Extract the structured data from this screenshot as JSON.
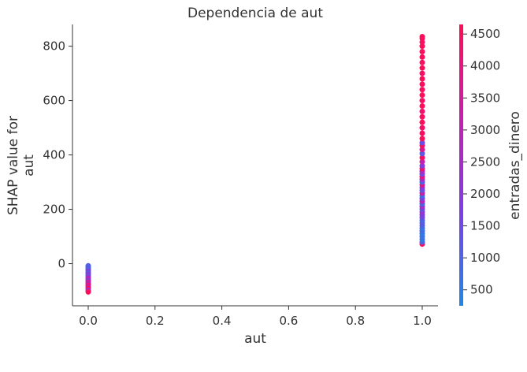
{
  "chart_data": {
    "type": "scatter",
    "title": "Dependencia de aut",
    "xlabel": "aut",
    "ylabel_line1": "SHAP value for",
    "ylabel_line2": "aut",
    "xlim": [
      -0.05,
      1.05
    ],
    "ylim": [
      -155,
      880
    ],
    "x_ticks": [
      0.0,
      0.2,
      0.4,
      0.6,
      0.8,
      1.0
    ],
    "x_tick_labels": [
      "0.0",
      "0.2",
      "0.4",
      "0.6",
      "0.8",
      "1.0"
    ],
    "y_ticks": [
      0,
      200,
      400,
      600,
      800
    ],
    "y_tick_labels": [
      "0",
      "200",
      "400",
      "600",
      "800"
    ],
    "grid": false,
    "colorbar": {
      "label": "entradas_dinero",
      "range": [
        250,
        4650
      ],
      "ticks": [
        500,
        1000,
        1500,
        2000,
        2500,
        3000,
        3500,
        4000,
        4500
      ],
      "tick_labels": [
        "500",
        "1000",
        "1500",
        "2000",
        "2500",
        "3000",
        "3500",
        "4000",
        "4500"
      ],
      "colormap": [
        "#1e88e5",
        "#7c3ee6",
        "#c41fb0",
        "#ff0d57"
      ]
    },
    "series": [
      {
        "points": [
          {
            "x": 0.0,
            "y": -8,
            "c": 1200
          },
          {
            "x": 0.0,
            "y": -12,
            "c": 800
          },
          {
            "x": 0.0,
            "y": -18,
            "c": 1500
          },
          {
            "x": 0.0,
            "y": -22,
            "c": 900
          },
          {
            "x": 0.0,
            "y": -28,
            "c": 1800
          },
          {
            "x": 0.0,
            "y": -35,
            "c": 1100
          },
          {
            "x": 0.0,
            "y": -40,
            "c": 2200
          },
          {
            "x": 0.0,
            "y": -46,
            "c": 1300
          },
          {
            "x": 0.0,
            "y": -52,
            "c": 2600
          },
          {
            "x": 0.0,
            "y": -58,
            "c": 3100
          },
          {
            "x": 0.0,
            "y": -63,
            "c": 1700
          },
          {
            "x": 0.0,
            "y": -68,
            "c": 3600
          },
          {
            "x": 0.0,
            "y": -74,
            "c": 2900
          },
          {
            "x": 0.0,
            "y": -80,
            "c": 4100
          },
          {
            "x": 0.0,
            "y": -86,
            "c": 3400
          },
          {
            "x": 0.0,
            "y": -92,
            "c": 4400
          },
          {
            "x": 0.0,
            "y": -98,
            "c": 2400
          },
          {
            "x": 0.0,
            "y": -104,
            "c": 4600
          },
          {
            "x": 1.0,
            "y": 72,
            "c": 4400
          },
          {
            "x": 1.0,
            "y": 80,
            "c": 900
          },
          {
            "x": 1.0,
            "y": 90,
            "c": 600
          },
          {
            "x": 1.0,
            "y": 100,
            "c": 700
          },
          {
            "x": 1.0,
            "y": 110,
            "c": 500
          },
          {
            "x": 1.0,
            "y": 120,
            "c": 800
          },
          {
            "x": 1.0,
            "y": 130,
            "c": 650
          },
          {
            "x": 1.0,
            "y": 140,
            "c": 1000
          },
          {
            "x": 1.0,
            "y": 150,
            "c": 1200
          },
          {
            "x": 1.0,
            "y": 160,
            "c": 900
          },
          {
            "x": 1.0,
            "y": 170,
            "c": 1500
          },
          {
            "x": 1.0,
            "y": 180,
            "c": 1800
          },
          {
            "x": 1.0,
            "y": 190,
            "c": 2200
          },
          {
            "x": 1.0,
            "y": 200,
            "c": 1400
          },
          {
            "x": 1.0,
            "y": 210,
            "c": 2600
          },
          {
            "x": 1.0,
            "y": 220,
            "c": 1000
          },
          {
            "x": 1.0,
            "y": 230,
            "c": 3000
          },
          {
            "x": 1.0,
            "y": 240,
            "c": 1700
          },
          {
            "x": 1.0,
            "y": 250,
            "c": 800
          },
          {
            "x": 1.0,
            "y": 260,
            "c": 3400
          },
          {
            "x": 1.0,
            "y": 270,
            "c": 1300
          },
          {
            "x": 1.0,
            "y": 280,
            "c": 2000
          },
          {
            "x": 1.0,
            "y": 290,
            "c": 3800
          },
          {
            "x": 1.0,
            "y": 300,
            "c": 1100
          },
          {
            "x": 1.0,
            "y": 310,
            "c": 2400
          },
          {
            "x": 1.0,
            "y": 320,
            "c": 4000
          },
          {
            "x": 1.0,
            "y": 330,
            "c": 1600
          },
          {
            "x": 1.0,
            "y": 340,
            "c": 2800
          },
          {
            "x": 1.0,
            "y": 350,
            "c": 4300
          },
          {
            "x": 1.0,
            "y": 360,
            "c": 1900
          },
          {
            "x": 1.0,
            "y": 375,
            "c": 3200
          },
          {
            "x": 1.0,
            "y": 390,
            "c": 4500
          },
          {
            "x": 1.0,
            "y": 405,
            "c": 1250
          },
          {
            "x": 1.0,
            "y": 420,
            "c": 3700
          },
          {
            "x": 1.0,
            "y": 435,
            "c": 4550
          },
          {
            "x": 1.0,
            "y": 445,
            "c": 1500
          },
          {
            "x": 1.0,
            "y": 460,
            "c": 4600
          },
          {
            "x": 1.0,
            "y": 480,
            "c": 4500
          },
          {
            "x": 1.0,
            "y": 500,
            "c": 4400
          },
          {
            "x": 1.0,
            "y": 520,
            "c": 4600
          },
          {
            "x": 1.0,
            "y": 540,
            "c": 4500
          },
          {
            "x": 1.0,
            "y": 560,
            "c": 4300
          },
          {
            "x": 1.0,
            "y": 580,
            "c": 4600
          },
          {
            "x": 1.0,
            "y": 600,
            "c": 4450
          },
          {
            "x": 1.0,
            "y": 620,
            "c": 4600
          },
          {
            "x": 1.0,
            "y": 640,
            "c": 4500
          },
          {
            "x": 1.0,
            "y": 660,
            "c": 4550
          },
          {
            "x": 1.0,
            "y": 680,
            "c": 4600
          },
          {
            "x": 1.0,
            "y": 700,
            "c": 4400
          },
          {
            "x": 1.0,
            "y": 720,
            "c": 4600
          },
          {
            "x": 1.0,
            "y": 740,
            "c": 4500
          },
          {
            "x": 1.0,
            "y": 760,
            "c": 4600
          },
          {
            "x": 1.0,
            "y": 780,
            "c": 4550
          },
          {
            "x": 1.0,
            "y": 800,
            "c": 4600
          },
          {
            "x": 1.0,
            "y": 815,
            "c": 4500
          },
          {
            "x": 1.0,
            "y": 828,
            "c": 4600
          },
          {
            "x": 1.0,
            "y": 835,
            "c": 4600
          }
        ]
      }
    ]
  }
}
